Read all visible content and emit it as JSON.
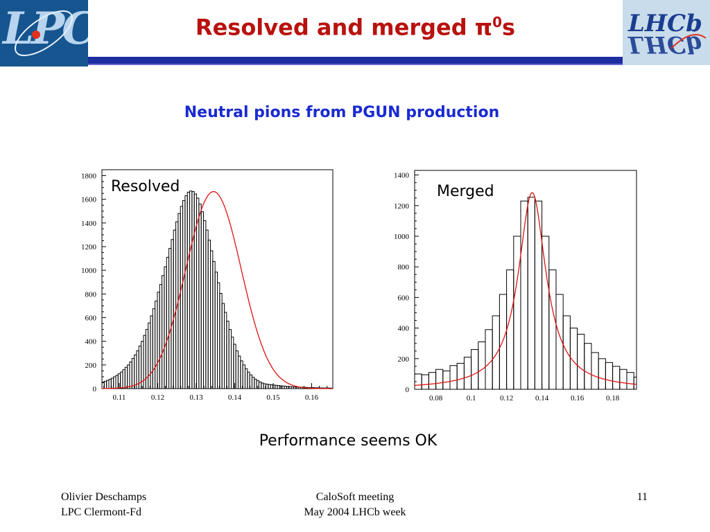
{
  "header": {
    "title_main": "Resolved and merged π",
    "title_sup": "0",
    "title_tail": "s",
    "left_logo_text": "LPC",
    "right_logo_text": "LHCb"
  },
  "subtitle": "Neutral pions from PGUN production",
  "conclusion": "Performance seems OK",
  "footer": {
    "author": "Olivier Deschamps",
    "affiliation": "LPC Clermont-Fd",
    "meeting": "CaloSoft meeting",
    "meeting_date": "May 2004 LHCb week",
    "page_number": "11"
  },
  "colors": {
    "title": "#b8120f",
    "subtitle": "#1a2bd0",
    "rule": "#1e2ea0",
    "fit": "#e01010",
    "histogram": "#000000"
  },
  "chart_data": [
    {
      "type": "histogram",
      "label": "Resolved",
      "xlim": [
        0.1055,
        0.1655
      ],
      "ylim": [
        0,
        1850
      ],
      "xticks": [
        0.11,
        0.12,
        0.13,
        0.14,
        0.15,
        0.16
      ],
      "xtick_labels": [
        "0.11",
        "0.12",
        "0.13",
        "0.14",
        "0.15",
        "0.16"
      ],
      "yticks": [
        0,
        200,
        400,
        600,
        800,
        1000,
        1200,
        1400,
        1600,
        1800
      ],
      "ytick_labels": [
        "0",
        "200",
        "400",
        "600",
        "800",
        "1000",
        "1200",
        "1400",
        "1600",
        "1800"
      ],
      "bin_start": 0.1055,
      "bin_width": 0.0006,
      "values": [
        55,
        62,
        70,
        78,
        88,
        100,
        112,
        125,
        140,
        160,
        180,
        200,
        225,
        255,
        285,
        320,
        360,
        400,
        450,
        500,
        555,
        615,
        675,
        740,
        815,
        880,
        955,
        1030,
        1110,
        1185,
        1260,
        1340,
        1410,
        1480,
        1540,
        1590,
        1630,
        1660,
        1670,
        1665,
        1645,
        1610,
        1560,
        1495,
        1420,
        1340,
        1255,
        1165,
        1075,
        985,
        895,
        805,
        720,
        645,
        570,
        500,
        435,
        375,
        320,
        275,
        235,
        200,
        168,
        140,
        116,
        96,
        80,
        67,
        56,
        47,
        41,
        38,
        35,
        32,
        30,
        28,
        26,
        24,
        22,
        20,
        18,
        17,
        16,
        15,
        14,
        13,
        12,
        11,
        10,
        9,
        8,
        8,
        7,
        7,
        6,
        6,
        5,
        5,
        5,
        4
      ],
      "fit": {
        "function": "gaussian",
        "peak": 1665,
        "mean": 0.1345,
        "sigma": 0.0072,
        "baseline": 0
      }
    },
    {
      "type": "histogram",
      "label": "Merged",
      "xlim": [
        0.068,
        0.1935
      ],
      "ylim": [
        0,
        1430
      ],
      "xticks": [
        0.08,
        0.1,
        0.12,
        0.14,
        0.16,
        0.18
      ],
      "xtick_labels": [
        "0.08",
        "0.1",
        "0.12",
        "0.14",
        "0.16",
        "0.18"
      ],
      "yticks": [
        0,
        200,
        400,
        600,
        800,
        1000,
        1200,
        1400
      ],
      "ytick_labels": [
        "0",
        "200",
        "400",
        "600",
        "800",
        "1000",
        "1200",
        "1400"
      ],
      "bin_start": 0.068,
      "bin_width": 0.004,
      "values": [
        100,
        95,
        110,
        130,
        120,
        155,
        170,
        210,
        260,
        310,
        390,
        480,
        620,
        780,
        1000,
        1230,
        1255,
        1230,
        1000,
        780,
        620,
        480,
        400,
        360,
        300,
        240,
        200,
        175,
        150,
        130,
        110,
        80
      ],
      "fit": {
        "function": "lorentzian",
        "peak": 1285,
        "mean": 0.1345,
        "hwhm": 0.0095
      }
    }
  ]
}
